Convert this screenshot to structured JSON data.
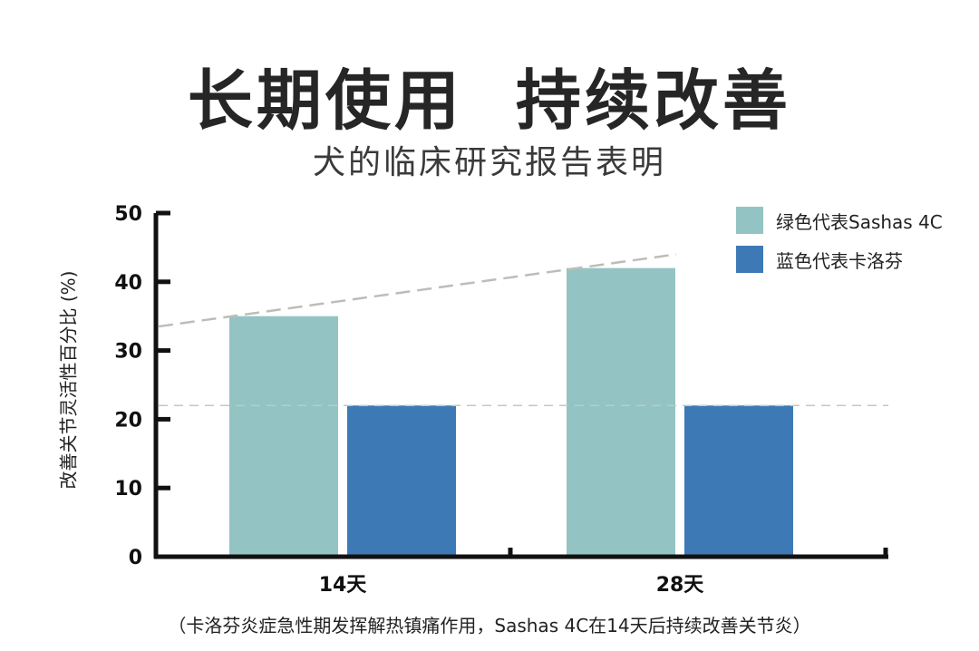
{
  "title": "长期使用  持续改善",
  "subtitle": "犬的临床研究报告表明",
  "footnote": "（卡洛芬炎症急性期发挥解热镇痛作用，Sashas 4C在14天后持续改善关节炎）",
  "chart_data": {
    "type": "bar",
    "title": "长期使用  持续改善",
    "subtitle": "犬的临床研究报告表明",
    "xlabel": "",
    "ylabel": "改善关节灵活性百分比 (%)",
    "categories": [
      "14天",
      "28天"
    ],
    "series": [
      {
        "name": "绿色代表Sashas 4C",
        "color": "#93c4c3",
        "values": [
          35,
          42
        ]
      },
      {
        "name": "蓝色代表卡洛芬",
        "color": "#3d7ab5",
        "values": [
          22,
          22
        ]
      }
    ],
    "ylim": [
      0,
      50
    ],
    "yticks": [
      0,
      10,
      20,
      30,
      40,
      50
    ],
    "grid": false,
    "legend": "top-right",
    "reference_lines": [
      {
        "style": "dashed",
        "from": 33.5,
        "to": 44,
        "meaning": "trend"
      },
      {
        "style": "dashed",
        "from": 22,
        "to": 22,
        "meaning": "baseline"
      }
    ]
  }
}
